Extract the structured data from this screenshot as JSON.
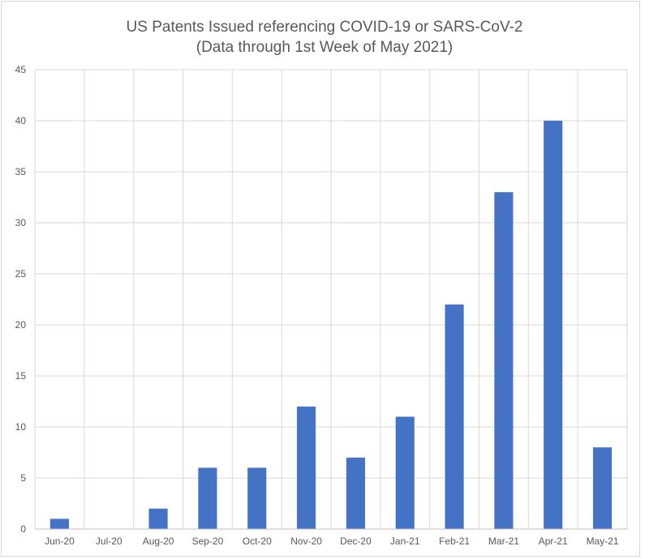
{
  "chart_data": {
    "type": "bar",
    "title": "US Patents Issued referencing COVID-19 or SARS-CoV-2",
    "subtitle": "(Data through 1st Week of May 2021)",
    "xlabel": "",
    "ylabel": "",
    "categories": [
      "Jun-20",
      "Jul-20",
      "Aug-20",
      "Sep-20",
      "Oct-20",
      "Nov-20",
      "Dec-20",
      "Jan-21",
      "Feb-21",
      "Mar-21",
      "Apr-21",
      "May-21"
    ],
    "values": [
      1,
      0,
      2,
      6,
      6,
      12,
      7,
      11,
      22,
      33,
      40,
      8
    ],
    "ylim": [
      0,
      45
    ],
    "yticks": [
      "0",
      "5",
      "10",
      "15",
      "20",
      "25",
      "30",
      "35",
      "40",
      "45"
    ],
    "grid": {
      "horizontal": true,
      "vertical": true
    },
    "legend": "none",
    "bar_color": "#4472c4"
  }
}
